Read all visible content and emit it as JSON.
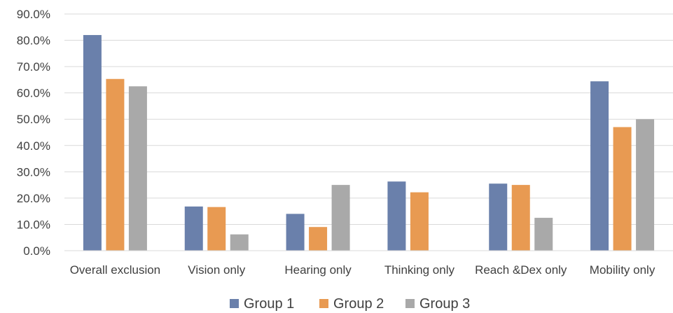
{
  "chart_data": {
    "type": "bar",
    "categories": [
      "Overall exclusion",
      "Vision only",
      "Hearing only",
      "Thinking only",
      "Reach &Dex only",
      "Mobility only"
    ],
    "series": [
      {
        "name": "Group 1",
        "color": "#6a80ab",
        "values": [
          82.0,
          16.8,
          14.0,
          26.3,
          25.5,
          64.4
        ]
      },
      {
        "name": "Group 2",
        "color": "#e89a52",
        "values": [
          65.3,
          16.6,
          9.0,
          22.2,
          25.0,
          47.0
        ]
      },
      {
        "name": "Group 3",
        "color": "#a9a9a9",
        "values": [
          62.5,
          6.2,
          25.0,
          null,
          12.5,
          50.0
        ]
      }
    ],
    "y_ticks": [
      "0.0%",
      "10.0%",
      "20.0%",
      "30.0%",
      "40.0%",
      "50.0%",
      "60.0%",
      "70.0%",
      "80.0%",
      "90.0%"
    ],
    "ylim": [
      0,
      90
    ],
    "grid": true,
    "legend_position": "bottom"
  }
}
